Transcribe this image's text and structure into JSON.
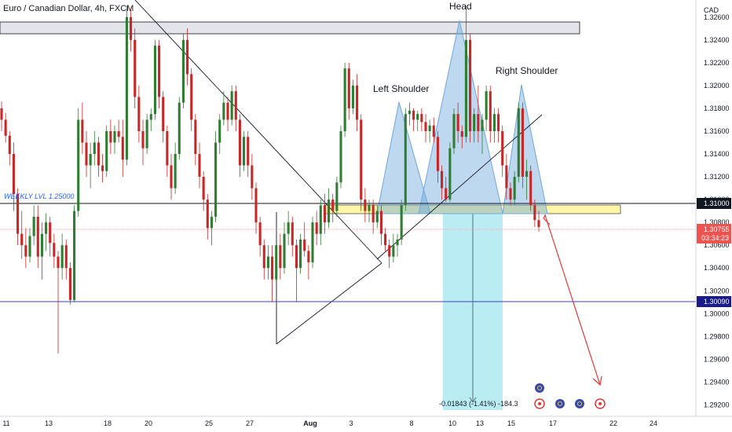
{
  "title": "Euro / Canadian Dollar, 4h, FXCM",
  "chart_data": {
    "type": "candlestick",
    "currency_label": "CAD",
    "ylim": [
      1.291,
      1.3275
    ],
    "y_ticks": [
      "1.32600",
      "1.32400",
      "1.32200",
      "1.32000",
      "1.31800",
      "1.31600",
      "1.31400",
      "1.31200",
      "1.31000",
      "1.30800",
      "1.30600",
      "1.30400",
      "1.30200",
      "1.30000",
      "1.29800",
      "1.29600",
      "1.29400",
      "1.29200"
    ],
    "x_ticks": [
      "11",
      "13",
      "18",
      "20",
      "25",
      "27",
      "Aug",
      "3",
      "8",
      "10",
      "13",
      "15",
      "17",
      "22",
      "24"
    ],
    "colors": {
      "up": "#26a69a",
      "down": "#ef5350",
      "candle_up": "#2e7d32",
      "candle_down": "#c62828"
    },
    "candles": [
      [
        1.318,
        1.3186,
        1.316,
        1.317
      ],
      [
        1.317,
        1.3176,
        1.315,
        1.3156
      ],
      [
        1.3156,
        1.316,
        1.313,
        1.314
      ],
      [
        1.314,
        1.315,
        1.309,
        1.3105
      ],
      [
        1.3105,
        1.311,
        1.306,
        1.307
      ],
      [
        1.307,
        1.309,
        1.3048,
        1.306
      ],
      [
        1.306,
        1.3075,
        1.304,
        1.305
      ],
      [
        1.305,
        1.3075,
        1.3045,
        1.3068
      ],
      [
        1.3068,
        1.3095,
        1.306,
        1.3085
      ],
      [
        1.3085,
        1.3095,
        1.304,
        1.305
      ],
      [
        1.305,
        1.308,
        1.303,
        1.307
      ],
      [
        1.307,
        1.3088,
        1.3055,
        1.308
      ],
      [
        1.308,
        1.3085,
        1.305,
        1.3062
      ],
      [
        1.3062,
        1.307,
        1.304,
        1.305
      ],
      [
        1.305,
        1.3055,
        1.2965,
        1.304
      ],
      [
        1.304,
        1.307,
        1.303,
        1.306
      ],
      [
        1.306,
        1.3065,
        1.303,
        1.304
      ],
      [
        1.304,
        1.3045,
        1.3008,
        1.3012
      ],
      [
        1.3012,
        1.3095,
        1.301,
        1.309
      ],
      [
        1.309,
        1.318,
        1.3085,
        1.317
      ],
      [
        1.317,
        1.3185,
        1.314,
        1.315
      ],
      [
        1.315,
        1.316,
        1.312,
        1.313
      ],
      [
        1.313,
        1.315,
        1.311,
        1.314
      ],
      [
        1.314,
        1.316,
        1.313,
        1.315
      ],
      [
        1.315,
        1.3155,
        1.312,
        1.313
      ],
      [
        1.313,
        1.314,
        1.3115,
        1.3125
      ],
      [
        1.3125,
        1.3165,
        1.312,
        1.316
      ],
      [
        1.316,
        1.317,
        1.314,
        1.315
      ],
      [
        1.315,
        1.3165,
        1.314,
        1.316
      ],
      [
        1.316,
        1.317,
        1.315,
        1.3155
      ],
      [
        1.3155,
        1.317,
        1.312,
        1.3135
      ],
      [
        1.3135,
        1.327,
        1.313,
        1.326
      ],
      [
        1.326,
        1.3268,
        1.323,
        1.324
      ],
      [
        1.324,
        1.325,
        1.318,
        1.319
      ],
      [
        1.319,
        1.32,
        1.315,
        1.316
      ],
      [
        1.316,
        1.317,
        1.313,
        1.3145
      ],
      [
        1.3145,
        1.3175,
        1.314,
        1.317
      ],
      [
        1.317,
        1.318,
        1.316,
        1.3175
      ],
      [
        1.3175,
        1.324,
        1.317,
        1.3235
      ],
      [
        1.3235,
        1.324,
        1.318,
        1.319
      ],
      [
        1.319,
        1.3195,
        1.315,
        1.316
      ],
      [
        1.316,
        1.3165,
        1.312,
        1.313
      ],
      [
        1.313,
        1.314,
        1.31,
        1.311
      ],
      [
        1.311,
        1.315,
        1.3105,
        1.314
      ],
      [
        1.314,
        1.319,
        1.3135,
        1.3185
      ],
      [
        1.3185,
        1.3245,
        1.318,
        1.324
      ],
      [
        1.324,
        1.325,
        1.32,
        1.321
      ],
      [
        1.321,
        1.3215,
        1.316,
        1.317
      ],
      [
        1.317,
        1.3175,
        1.313,
        1.314
      ],
      [
        1.314,
        1.315,
        1.311,
        1.312
      ],
      [
        1.312,
        1.3125,
        1.309,
        1.31
      ],
      [
        1.31,
        1.3105,
        1.3065,
        1.3075
      ],
      [
        1.3075,
        1.309,
        1.306,
        1.3085
      ],
      [
        1.3085,
        1.316,
        1.308,
        1.315
      ],
      [
        1.315,
        1.3175,
        1.314,
        1.317
      ],
      [
        1.317,
        1.3195,
        1.3165,
        1.3185
      ],
      [
        1.3185,
        1.319,
        1.316,
        1.317
      ],
      [
        1.317,
        1.32,
        1.3165,
        1.3195
      ],
      [
        1.3195,
        1.32,
        1.316,
        1.317
      ],
      [
        1.317,
        1.3175,
        1.312,
        1.313
      ],
      [
        1.313,
        1.316,
        1.3125,
        1.3155
      ],
      [
        1.3155,
        1.316,
        1.312,
        1.313
      ],
      [
        1.313,
        1.314,
        1.31,
        1.311
      ],
      [
        1.311,
        1.3115,
        1.307,
        1.308
      ],
      [
        1.308,
        1.3085,
        1.305,
        1.306
      ],
      [
        1.306,
        1.3065,
        1.303,
        1.304
      ],
      [
        1.304,
        1.306,
        1.303,
        1.305
      ],
      [
        1.305,
        1.306,
        1.301,
        1.303
      ],
      [
        1.303,
        1.3065,
        1.3025,
        1.306
      ],
      [
        1.306,
        1.307,
        1.303,
        1.304
      ],
      [
        1.304,
        1.308,
        1.3035,
        1.307
      ],
      [
        1.307,
        1.309,
        1.306,
        1.308
      ],
      [
        1.308,
        1.3085,
        1.305,
        1.306
      ],
      [
        1.306,
        1.3065,
        1.301,
        1.304
      ],
      [
        1.304,
        1.307,
        1.3035,
        1.3065
      ],
      [
        1.3065,
        1.308,
        1.305,
        1.3055
      ],
      [
        1.3055,
        1.306,
        1.303,
        1.3045
      ],
      [
        1.3045,
        1.3085,
        1.304,
        1.308
      ],
      [
        1.308,
        1.309,
        1.306,
        1.307
      ],
      [
        1.307,
        1.31,
        1.306,
        1.3095
      ],
      [
        1.3095,
        1.3105,
        1.307,
        1.308
      ],
      [
        1.308,
        1.311,
        1.3075,
        1.31
      ],
      [
        1.31,
        1.3105,
        1.308,
        1.309
      ],
      [
        1.309,
        1.312,
        1.3085,
        1.3115
      ],
      [
        1.3115,
        1.3165,
        1.311,
        1.316
      ],
      [
        1.316,
        1.322,
        1.3155,
        1.3215
      ],
      [
        1.3215,
        1.322,
        1.317,
        1.318
      ],
      [
        1.318,
        1.3205,
        1.3175,
        1.32
      ],
      [
        1.32,
        1.321,
        1.316,
        1.317
      ],
      [
        1.317,
        1.3175,
        1.309,
        1.31
      ],
      [
        1.31,
        1.311,
        1.308,
        1.309
      ],
      [
        1.309,
        1.31,
        1.308,
        1.3095
      ],
      [
        1.3095,
        1.31,
        1.307,
        1.308
      ],
      [
        1.308,
        1.3095,
        1.3075,
        1.309
      ],
      [
        1.309,
        1.3095,
        1.306,
        1.307
      ],
      [
        1.307,
        1.3075,
        1.3055,
        1.306
      ],
      [
        1.306,
        1.3065,
        1.304,
        1.305
      ],
      [
        1.305,
        1.307,
        1.3045,
        1.306
      ],
      [
        1.306,
        1.307,
        1.305,
        1.3065
      ],
      [
        1.3065,
        1.31,
        1.306,
        1.3095
      ],
      [
        1.3095,
        1.318,
        1.309,
        1.3175
      ],
      [
        1.3175,
        1.3185,
        1.3165,
        1.3178
      ],
      [
        1.3178,
        1.318,
        1.316,
        1.317
      ],
      [
        1.317,
        1.3178,
        1.316,
        1.3175
      ],
      [
        1.3175,
        1.318,
        1.316,
        1.3168
      ],
      [
        1.3168,
        1.3175,
        1.315,
        1.316
      ],
      [
        1.316,
        1.317,
        1.315,
        1.3165
      ],
      [
        1.3165,
        1.3172,
        1.315,
        1.3155
      ],
      [
        1.3155,
        1.316,
        1.3115,
        1.3125
      ],
      [
        1.3125,
        1.313,
        1.31,
        1.311
      ],
      [
        1.311,
        1.312,
        1.3098,
        1.31
      ],
      [
        1.31,
        1.315,
        1.3098,
        1.3145
      ],
      [
        1.3145,
        1.318,
        1.314,
        1.3175
      ],
      [
        1.3175,
        1.3185,
        1.315,
        1.316
      ],
      [
        1.316,
        1.3165,
        1.3145,
        1.3155
      ],
      [
        1.3155,
        1.327,
        1.315,
        1.324
      ],
      [
        1.324,
        1.3245,
        1.315,
        1.316
      ],
      [
        1.316,
        1.318,
        1.315,
        1.3175
      ],
      [
        1.3175,
        1.32,
        1.315,
        1.316
      ],
      [
        1.316,
        1.3175,
        1.314,
        1.317
      ],
      [
        1.317,
        1.32,
        1.316,
        1.3195
      ],
      [
        1.3195,
        1.32,
        1.315,
        1.316
      ],
      [
        1.316,
        1.318,
        1.315,
        1.3175
      ],
      [
        1.3175,
        1.318,
        1.315,
        1.316
      ],
      [
        1.316,
        1.3165,
        1.312,
        1.313
      ],
      [
        1.313,
        1.314,
        1.31,
        1.311
      ],
      [
        1.311,
        1.3115,
        1.3095,
        1.31
      ],
      [
        1.31,
        1.3125,
        1.3095,
        1.312
      ],
      [
        1.312,
        1.3185,
        1.3115,
        1.318
      ],
      [
        1.318,
        1.3185,
        1.311,
        1.312
      ],
      [
        1.312,
        1.3135,
        1.31,
        1.3125
      ],
      [
        1.3125,
        1.313,
        1.309,
        1.3095
      ],
      [
        1.3095,
        1.31,
        1.3076,
        1.3082
      ],
      [
        1.3082,
        1.309,
        1.3072,
        1.3076
      ]
    ],
    "annotations": [
      "Head",
      "Left Shoulder",
      "Right Shoulder",
      "WEEKLY LVL 1.25000"
    ],
    "horizontal_levels": [
      {
        "price": 1.31,
        "label": "1.31000",
        "color": "#131722"
      },
      {
        "price": 1.30755,
        "label": "1.30755",
        "sub": "03:34:23",
        "color": "#ef5350"
      },
      {
        "price": 1.3009,
        "label": "1.30090",
        "color": "#1a1a8f"
      }
    ],
    "measure_label": "-0.01843 (-1.41%) -184.3",
    "grid": false,
    "legend": "none"
  }
}
